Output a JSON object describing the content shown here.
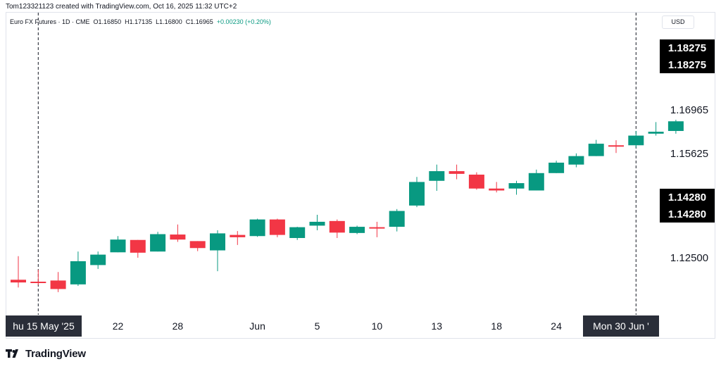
{
  "header": {
    "credit": "Tom123321123 created with TradingView.com, Oct 16, 2025 11:32 UTC+2",
    "symbol": "Euro FX Futures · 1D · CME",
    "o": "O1.16850",
    "h": "H1.17135",
    "l": "L1.16800",
    "c": "C1.16965",
    "change": "+0.00230 (+0.20%)"
  },
  "currency": "USD",
  "footer": {
    "brand": "TradingView",
    "logo_icon": "tradingview-logo-icon"
  },
  "colors": {
    "up": "#089981",
    "down": "#f23645",
    "text": "#131722",
    "label_bg": "#000000",
    "time_label_bg": "#2a2e39"
  },
  "chart_data": {
    "type": "candlestick",
    "ylim": [
      1.1125,
      1.1863
    ],
    "price_ticks": [
      "1.16965",
      "1.15625",
      "1.12500"
    ],
    "price_labels": [
      "1.18275",
      "1.18275",
      "1.14280",
      "1.14280"
    ],
    "date_ticks": [
      {
        "label": "22",
        "index": 5
      },
      {
        "label": "28",
        "index": 8
      },
      {
        "label": "Jun",
        "index": 12
      },
      {
        "label": "5",
        "index": 15
      },
      {
        "label": "10",
        "index": 18
      },
      {
        "label": "13",
        "index": 21
      },
      {
        "label": "18",
        "index": 24
      },
      {
        "label": "24",
        "index": 27
      }
    ],
    "crosshair_labels": [
      {
        "label": "hu 15 May '25",
        "index": 1
      },
      {
        "label": "Mon 30 Jun '",
        "index": 31
      }
    ],
    "candles": [
      {
        "o": 1.1212,
        "h": 1.1273,
        "l": 1.1192,
        "c": 1.1205
      },
      {
        "o": 1.1207,
        "h": 1.1238,
        "l": 1.1198,
        "c": 1.1205
      },
      {
        "o": 1.121,
        "h": 1.1232,
        "l": 1.118,
        "c": 1.1188
      },
      {
        "o": 1.12,
        "h": 1.1285,
        "l": 1.1196,
        "c": 1.126
      },
      {
        "o": 1.125,
        "h": 1.1285,
        "l": 1.124,
        "c": 1.1277
      },
      {
        "o": 1.1283,
        "h": 1.1325,
        "l": 1.1283,
        "c": 1.1316
      },
      {
        "o": 1.1315,
        "h": 1.1315,
        "l": 1.1269,
        "c": 1.1282
      },
      {
        "o": 1.1285,
        "h": 1.1336,
        "l": 1.1285,
        "c": 1.133
      },
      {
        "o": 1.1329,
        "h": 1.1355,
        "l": 1.131,
        "c": 1.1316
      },
      {
        "o": 1.1312,
        "h": 1.1312,
        "l": 1.1286,
        "c": 1.1294
      },
      {
        "o": 1.1288,
        "h": 1.134,
        "l": 1.1234,
        "c": 1.1332
      },
      {
        "o": 1.1328,
        "h": 1.1338,
        "l": 1.1302,
        "c": 1.1322
      },
      {
        "o": 1.1325,
        "h": 1.137,
        "l": 1.1323,
        "c": 1.1368
      },
      {
        "o": 1.1368,
        "h": 1.137,
        "l": 1.1322,
        "c": 1.1328
      },
      {
        "o": 1.132,
        "h": 1.1349,
        "l": 1.1315,
        "c": 1.1348
      },
      {
        "o": 1.1352,
        "h": 1.138,
        "l": 1.134,
        "c": 1.1362
      },
      {
        "o": 1.1364,
        "h": 1.1368,
        "l": 1.132,
        "c": 1.1334
      },
      {
        "o": 1.1333,
        "h": 1.1352,
        "l": 1.133,
        "c": 1.1349
      },
      {
        "o": 1.1348,
        "h": 1.1362,
        "l": 1.1322,
        "c": 1.1347
      },
      {
        "o": 1.1349,
        "h": 1.1395,
        "l": 1.1337,
        "c": 1.139
      },
      {
        "o": 1.1404,
        "h": 1.1478,
        "l": 1.14,
        "c": 1.1465
      },
      {
        "o": 1.1468,
        "h": 1.151,
        "l": 1.1442,
        "c": 1.1493
      },
      {
        "o": 1.1493,
        "h": 1.151,
        "l": 1.1472,
        "c": 1.1486
      },
      {
        "o": 1.1484,
        "h": 1.149,
        "l": 1.1445,
        "c": 1.1448
      },
      {
        "o": 1.1448,
        "h": 1.1465,
        "l": 1.1438,
        "c": 1.1443
      },
      {
        "o": 1.1448,
        "h": 1.1468,
        "l": 1.1432,
        "c": 1.1462
      },
      {
        "o": 1.1443,
        "h": 1.1497,
        "l": 1.1443,
        "c": 1.1488
      },
      {
        "o": 1.1488,
        "h": 1.152,
        "l": 1.1488,
        "c": 1.1515
      },
      {
        "o": 1.151,
        "h": 1.1539,
        "l": 1.1503,
        "c": 1.1532
      },
      {
        "o": 1.1532,
        "h": 1.1574,
        "l": 1.1532,
        "c": 1.1564
      },
      {
        "o": 1.156,
        "h": 1.1573,
        "l": 1.154,
        "c": 1.1557
      },
      {
        "o": 1.156,
        "h": 1.1597,
        "l": 1.1554,
        "c": 1.1585
      },
      {
        "o": 1.159,
        "h": 1.162,
        "l": 1.1585,
        "c": 1.1595
      },
      {
        "o": 1.1597,
        "h": 1.1626,
        "l": 1.159,
        "c": 1.1622
      }
    ]
  }
}
